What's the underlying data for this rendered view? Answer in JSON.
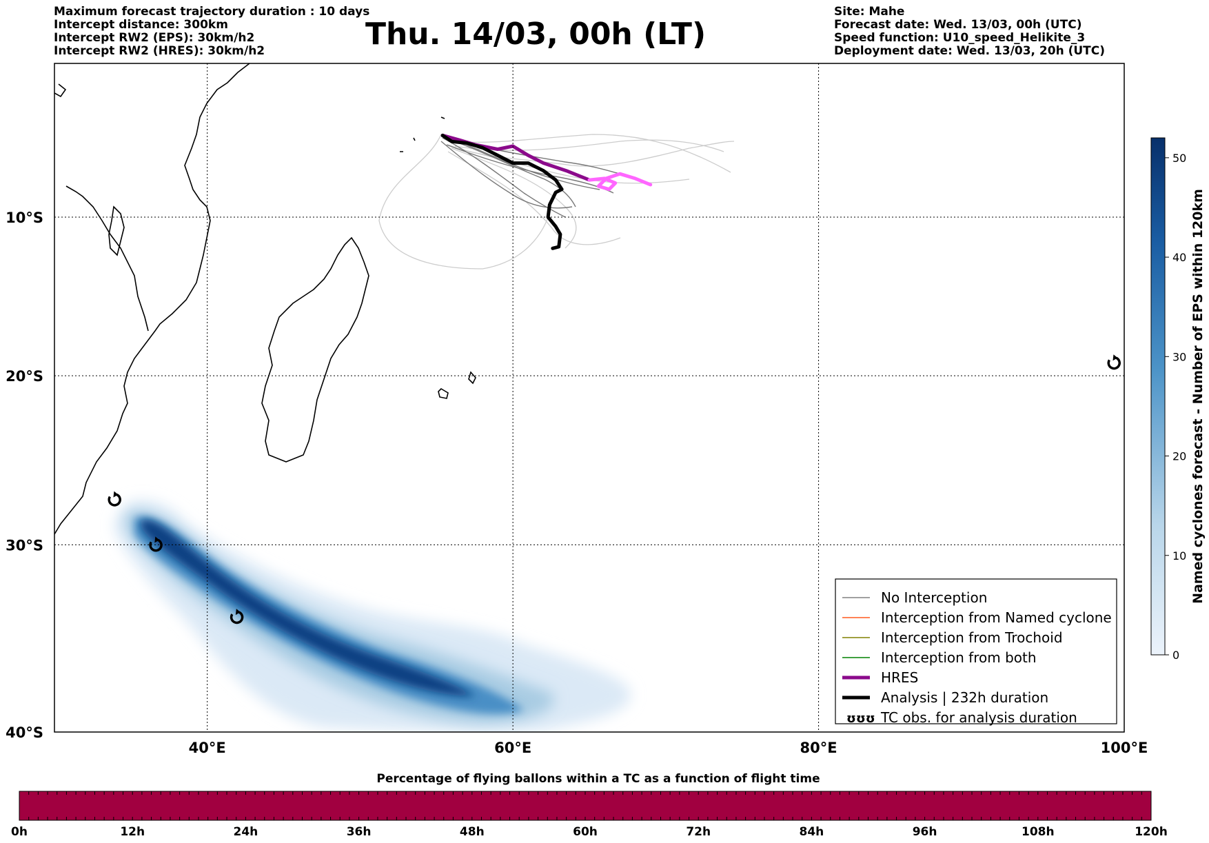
{
  "header": {
    "left_lines": [
      "Maximum forecast trajectory duration : 10 days",
      "Intercept distance: 300km",
      "Intercept RW2 (EPS):  30km/h2",
      "Intercept RW2 (HRES): 30km/h2"
    ],
    "title": "Thu. 14/03, 00h (LT)",
    "right_lines": [
      "Site: Mahe",
      "Forecast date: Wed. 13/03, 00h (UTC)",
      "Speed function: U10_speed_Helikite_3",
      "Deployment date: Wed. 13/03, 20h (UTC)"
    ]
  },
  "map": {
    "lon_range": [
      30,
      100
    ],
    "lat_range": [
      -40,
      0
    ],
    "x_ticks": [
      {
        "value": 40,
        "label": "40°E"
      },
      {
        "value": 60,
        "label": "60°E"
      },
      {
        "value": 80,
        "label": "80°E"
      },
      {
        "value": 100,
        "label": "100°E"
      }
    ],
    "y_ticks": [
      {
        "value": -10,
        "label": "10°S"
      },
      {
        "value": -20,
        "label": "20°S"
      },
      {
        "value": -30,
        "label": "30°S"
      },
      {
        "value": -40,
        "label": "40°S"
      }
    ],
    "grid": true,
    "tracks": {
      "hres_color": "#8b0a8b",
      "hres_forecast_color": "#ff66ff",
      "analysis_color": "#000000",
      "analysis_path": [
        [
          55.4,
          -4.7
        ],
        [
          56.0,
          -5.1
        ],
        [
          57.0,
          -5.2
        ],
        [
          58.0,
          -5.5
        ],
        [
          59.0,
          -6.0
        ],
        [
          60.0,
          -6.5
        ],
        [
          61.0,
          -6.5
        ],
        [
          62.0,
          -7.0
        ],
        [
          62.8,
          -7.6
        ],
        [
          63.2,
          -8.2
        ],
        [
          62.8,
          -8.4
        ],
        [
          62.4,
          -9.2
        ],
        [
          62.3,
          -10.0
        ],
        [
          62.8,
          -10.6
        ],
        [
          63.1,
          -11.1
        ],
        [
          63.0,
          -11.9
        ],
        [
          62.6,
          -12.0
        ]
      ],
      "hres_path": [
        [
          55.4,
          -4.7
        ],
        [
          56.5,
          -5.0
        ],
        [
          57.5,
          -5.3
        ],
        [
          59.0,
          -5.6
        ],
        [
          60.0,
          -5.4
        ],
        [
          61.0,
          -6.0
        ],
        [
          62.0,
          -6.5
        ],
        [
          63.5,
          -7.0
        ],
        [
          65.0,
          -7.6
        ]
      ],
      "hres_tail_path": [
        [
          65.0,
          -7.6
        ],
        [
          66.0,
          -7.5
        ],
        [
          66.7,
          -7.8
        ],
        [
          66.3,
          -8.2
        ],
        [
          65.6,
          -8.0
        ],
        [
          66.1,
          -7.5
        ],
        [
          67.0,
          -7.2
        ],
        [
          68.0,
          -7.5
        ],
        [
          69.0,
          -7.9
        ]
      ],
      "tc_obs": [
        [
          33.9,
          -27.4
        ],
        [
          36.6,
          -30.0
        ],
        [
          41.9,
          -34.0
        ],
        [
          99.3,
          -19.2
        ]
      ]
    },
    "density_colorbar": {
      "label": "Named cyclones forecast - Number of EPS within 120km",
      "min": 0,
      "max": 52,
      "ticks": [
        0,
        10,
        20,
        30,
        40,
        50
      ],
      "color_low": "#deebf7",
      "color_high": "#08306b"
    }
  },
  "legend": {
    "items": [
      {
        "label": "No Interception",
        "color": "#808080",
        "style": "thin"
      },
      {
        "label": "Interception from Named cyclone",
        "color": "#ff5a1f",
        "style": "thin"
      },
      {
        "label": "Interception from Trochoid",
        "color": "#808000",
        "style": "thin"
      },
      {
        "label": "Interception from both",
        "color": "#008000",
        "style": "thin"
      },
      {
        "label": "HRES",
        "color": "#8b0a8b",
        "style": "thick"
      },
      {
        "label": "Analysis | 232h duration",
        "color": "#000000",
        "style": "thick"
      },
      {
        "label": "TC obs. for analysis duration",
        "color": "#000000",
        "style": "symbol"
      }
    ],
    "symbol_text": "ʊʊʊ"
  },
  "timeline": {
    "title": "Percentage of flying ballons within a TC as a function of flight time",
    "bar_color": "#a10040",
    "ticks": [
      "0h",
      "12h",
      "24h",
      "36h",
      "48h",
      "60h",
      "72h",
      "84h",
      "96h",
      "108h",
      "120h"
    ]
  }
}
